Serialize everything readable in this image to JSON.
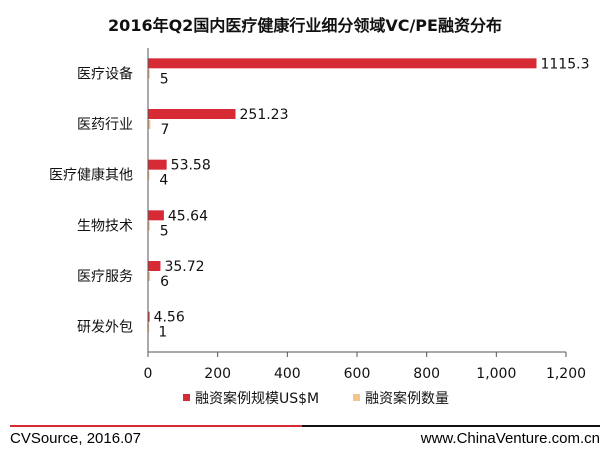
{
  "colors": {
    "value": "#d62a35",
    "count": "#f2c58a",
    "axis": "#555555",
    "text": "#111111"
  },
  "chart_data": {
    "type": "bar",
    "orientation": "horizontal",
    "title": "2016年Q2国内医疗健康行业细分领域VC/PE融资分布",
    "categories": [
      "医疗设备",
      "医药行业",
      "医疗健康其他",
      "生物技术",
      "医疗服务",
      "研发外包"
    ],
    "series": [
      {
        "name": "融资案例规模US$M",
        "values": [
          1115.3,
          251.23,
          53.58,
          45.64,
          35.72,
          4.56
        ],
        "labels": [
          "1115.3",
          "251.23",
          "53.58",
          "45.64",
          "35.72",
          "4.56"
        ]
      },
      {
        "name": "融资案例数量",
        "values": [
          5,
          7,
          4,
          5,
          6,
          1
        ],
        "labels": [
          "5",
          "7",
          "4",
          "5",
          "6",
          "1"
        ]
      }
    ],
    "xlim": [
      0,
      1200
    ],
    "xticks": [
      0,
      200,
      400,
      600,
      800,
      1000,
      1200
    ],
    "xtick_labels": [
      "0",
      "200",
      "400",
      "600",
      "800",
      "1,000",
      "1,200"
    ],
    "grid": false,
    "legend_position": "bottom"
  },
  "footer": {
    "source": "CVSource, 2016.07",
    "website": "www.ChinaVenture.com.cn"
  }
}
